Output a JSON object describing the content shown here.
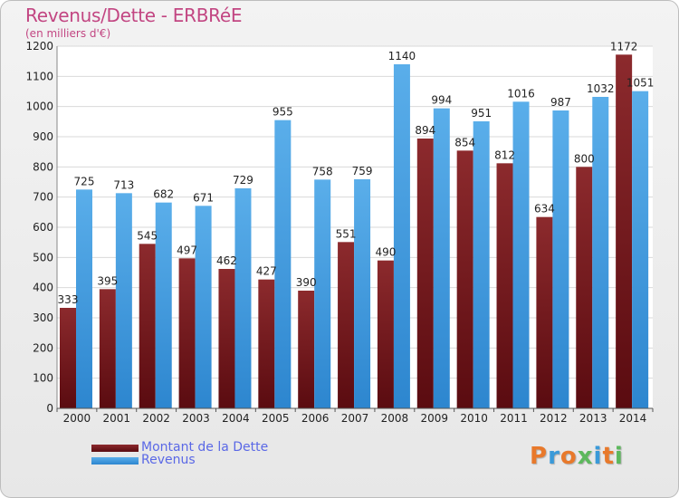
{
  "title": "Revenus/Dette - ERBRéE",
  "subtitle": "(en milliers d'€)",
  "logo_text": "Proxiti",
  "colors": {
    "debt": "#7a1a1f",
    "revenue": "#4ea4e3",
    "title": "#c24682",
    "legend_text": "#5a68e6"
  },
  "legend": [
    {
      "label": "Montant de la Dette",
      "color": "#7a1a1f"
    },
    {
      "label": "Revenus",
      "color": "#4ea4e3"
    }
  ],
  "chart_data": {
    "type": "bar",
    "title": "Revenus/Dette - ERBRéE",
    "subtitle": "(en milliers d'€)",
    "categories": [
      "2000",
      "2001",
      "2002",
      "2003",
      "2004",
      "2005",
      "2006",
      "2007",
      "2008",
      "2009",
      "2010",
      "2011",
      "2012",
      "2013",
      "2014"
    ],
    "series": [
      {
        "name": "Montant de la Dette",
        "values": [
          333,
          395,
          545,
          497,
          462,
          427,
          390,
          551,
          490,
          894,
          854,
          812,
          634,
          800,
          1172
        ]
      },
      {
        "name": "Revenus",
        "values": [
          725,
          713,
          682,
          671,
          729,
          955,
          758,
          759,
          1140,
          994,
          951,
          1016,
          987,
          1032,
          1051
        ]
      }
    ],
    "ylim": [
      0,
      1200
    ],
    "yticks": [
      0,
      100,
      200,
      300,
      400,
      500,
      600,
      700,
      800,
      900,
      1000,
      1100,
      1200
    ],
    "grid": true,
    "legend_position": "bottom-left"
  }
}
